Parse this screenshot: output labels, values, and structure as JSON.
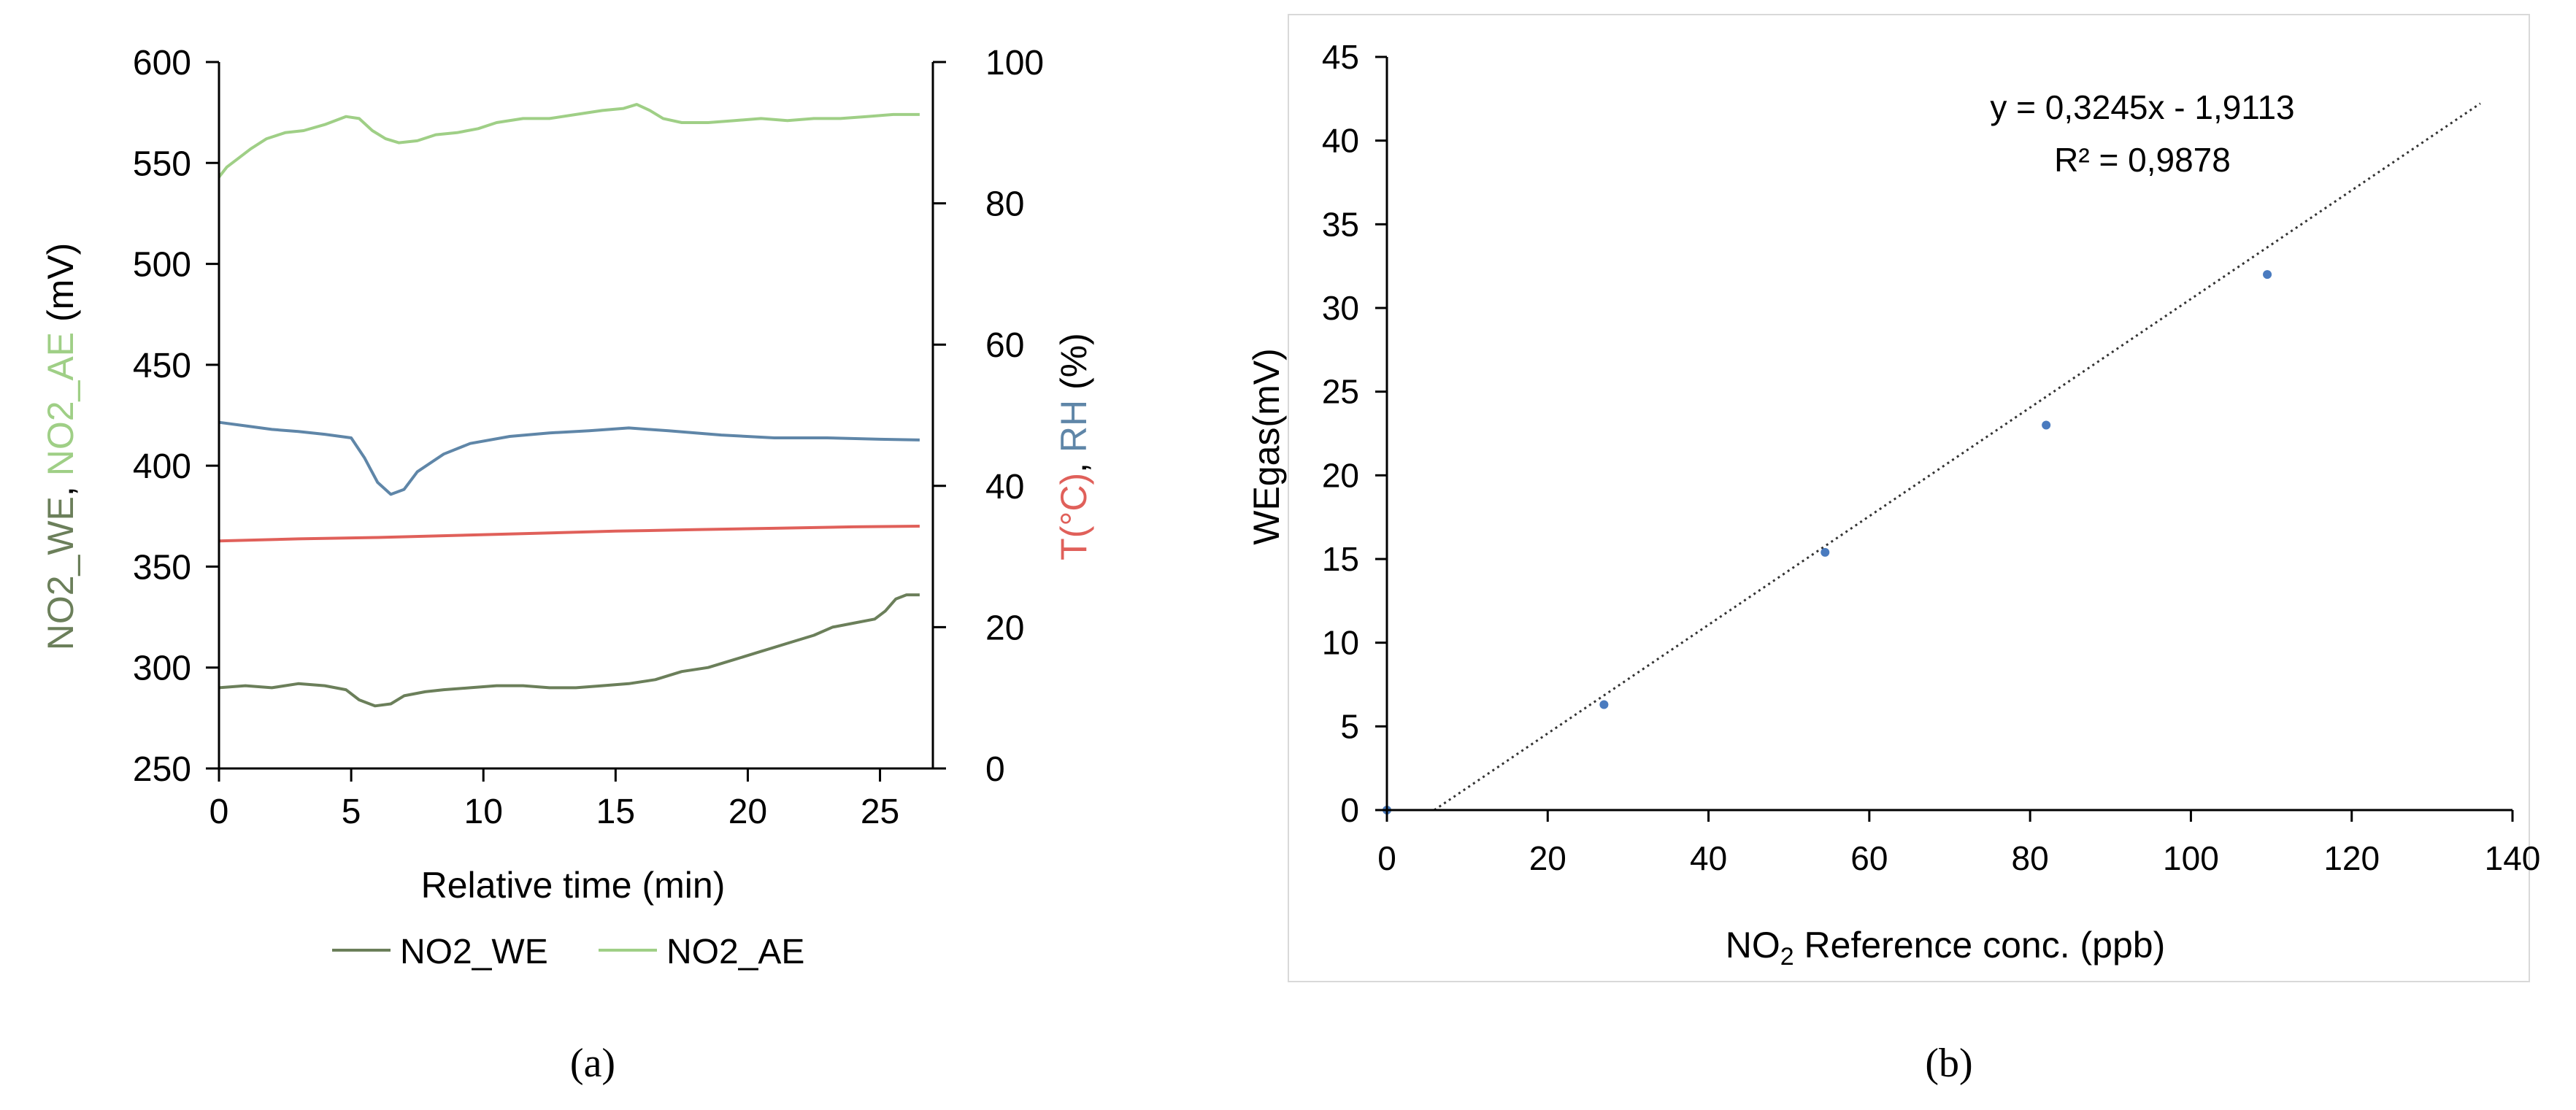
{
  "chart_data": [
    {
      "id": "a",
      "panel_label": "(a)",
      "type": "line",
      "xlabel": "Relative time (min)",
      "xlim": [
        0,
        27
      ],
      "x_ticks": [
        0,
        5,
        10,
        15,
        20,
        25
      ],
      "ylabel_parts": [
        "NO2_WE",
        ", ",
        "NO2_AE",
        " (mV)"
      ],
      "ylim": [
        250,
        600
      ],
      "y_ticks": [
        250,
        300,
        350,
        400,
        450,
        500,
        550,
        600
      ],
      "y2label_parts": [
        "T(°C)",
        ", ",
        "RH",
        " (%)"
      ],
      "y2lim": [
        0,
        100
      ],
      "y2_ticks": [
        0,
        20,
        40,
        60,
        80,
        100
      ],
      "legend": {
        "placement": "bottom",
        "entries": [
          "NO2_WE",
          "NO2_AE"
        ]
      },
      "grid": false,
      "colors": {
        "NO2_WE": "#6b7f5a",
        "NO2_AE": "#9fcf86",
        "T": "#e0605a",
        "RH": "#5f86a8",
        "axis": "#000000"
      },
      "series": [
        {
          "key": "NO2_AE",
          "axis": "left",
          "points": [
            [
              0,
              543
            ],
            [
              0.3,
              548
            ],
            [
              0.7,
              552
            ],
            [
              1.2,
              557
            ],
            [
              1.8,
              562
            ],
            [
              2.5,
              565
            ],
            [
              3.2,
              566
            ],
            [
              4.0,
              569
            ],
            [
              4.8,
              573
            ],
            [
              5.3,
              572
            ],
            [
              5.8,
              566
            ],
            [
              6.3,
              562
            ],
            [
              6.8,
              560
            ],
            [
              7.5,
              561
            ],
            [
              8.2,
              564
            ],
            [
              9.0,
              565
            ],
            [
              9.8,
              567
            ],
            [
              10.5,
              570
            ],
            [
              11.5,
              572
            ],
            [
              12.5,
              572
            ],
            [
              13.5,
              574
            ],
            [
              14.5,
              576
            ],
            [
              15.3,
              577
            ],
            [
              15.8,
              579
            ],
            [
              16.3,
              576
            ],
            [
              16.8,
              572
            ],
            [
              17.5,
              570
            ],
            [
              18.5,
              570
            ],
            [
              19.5,
              571
            ],
            [
              20.5,
              572
            ],
            [
              21.5,
              571
            ],
            [
              22.5,
              572
            ],
            [
              23.5,
              572
            ],
            [
              24.5,
              573
            ],
            [
              25.5,
              574
            ],
            [
              26.5,
              574
            ]
          ]
        },
        {
          "key": "NO2_WE",
          "axis": "left",
          "points": [
            [
              0,
              290
            ],
            [
              1,
              291
            ],
            [
              2,
              290
            ],
            [
              3,
              292
            ],
            [
              4,
              291
            ],
            [
              4.8,
              289
            ],
            [
              5.3,
              284
            ],
            [
              5.9,
              281
            ],
            [
              6.5,
              282
            ],
            [
              7.0,
              286
            ],
            [
              7.8,
              288
            ],
            [
              8.5,
              289
            ],
            [
              9.5,
              290
            ],
            [
              10.5,
              291
            ],
            [
              11.5,
              291
            ],
            [
              12.5,
              290
            ],
            [
              13.5,
              290
            ],
            [
              14.5,
              291
            ],
            [
              15.5,
              292
            ],
            [
              16.5,
              294
            ],
            [
              17.5,
              298
            ],
            [
              18.5,
              300
            ],
            [
              19.5,
              304
            ],
            [
              20.5,
              308
            ],
            [
              21.5,
              312
            ],
            [
              22.5,
              316
            ],
            [
              23.2,
              320
            ],
            [
              24,
              322
            ],
            [
              24.8,
              324
            ],
            [
              25.2,
              328
            ],
            [
              25.6,
              334
            ],
            [
              26.0,
              336
            ],
            [
              26.5,
              336
            ]
          ]
        },
        {
          "key": "RH",
          "axis": "right",
          "points": [
            [
              0,
              49
            ],
            [
              1,
              48.5
            ],
            [
              2,
              48
            ],
            [
              3,
              47.7
            ],
            [
              4,
              47.3
            ],
            [
              5,
              46.8
            ],
            [
              5.5,
              44
            ],
            [
              6.0,
              40.5
            ],
            [
              6.5,
              38.8
            ],
            [
              7.0,
              39.5
            ],
            [
              7.5,
              42
            ],
            [
              8.5,
              44.5
            ],
            [
              9.5,
              46
            ],
            [
              11,
              47
            ],
            [
              12.5,
              47.5
            ],
            [
              14,
              47.8
            ],
            [
              15.5,
              48.2
            ],
            [
              17,
              47.8
            ],
            [
              19,
              47.2
            ],
            [
              21,
              46.8
            ],
            [
              23,
              46.8
            ],
            [
              25,
              46.6
            ],
            [
              26.5,
              46.5
            ]
          ]
        },
        {
          "key": "T",
          "axis": "right",
          "points": [
            [
              0,
              32.2
            ],
            [
              3,
              32.5
            ],
            [
              6,
              32.7
            ],
            [
              9,
              33
            ],
            [
              12,
              33.3
            ],
            [
              15,
              33.6
            ],
            [
              18,
              33.8
            ],
            [
              21,
              34
            ],
            [
              24,
              34.2
            ],
            [
              26.5,
              34.3
            ]
          ]
        }
      ]
    },
    {
      "id": "b",
      "panel_label": "(b)",
      "type": "scatter",
      "xlabel_parts": [
        "NO",
        "2",
        " Reference conc. (ppb)"
      ],
      "ylabel": "WEgas(mV)",
      "xlim": [
        0,
        140
      ],
      "x_ticks": [
        0,
        20,
        40,
        60,
        80,
        100,
        120,
        140
      ],
      "ylim": [
        0,
        45
      ],
      "y_ticks": [
        0,
        5,
        10,
        15,
        20,
        25,
        30,
        35,
        40,
        45
      ],
      "grid": false,
      "colors": {
        "points": "#4a7bbf",
        "trendline": "#333333",
        "axis": "#000000"
      },
      "points": [
        [
          0,
          0
        ],
        [
          27,
          6.3
        ],
        [
          54.5,
          15.4
        ],
        [
          82,
          23
        ],
        [
          109.5,
          32
        ]
      ],
      "trendline": {
        "slope": 0.3245,
        "intercept": -1.9113,
        "x_range": [
          5.9,
          136
        ]
      },
      "equation": "y = 0,3245x - 1,9113",
      "r_squared": "R² = 0,9878"
    }
  ]
}
